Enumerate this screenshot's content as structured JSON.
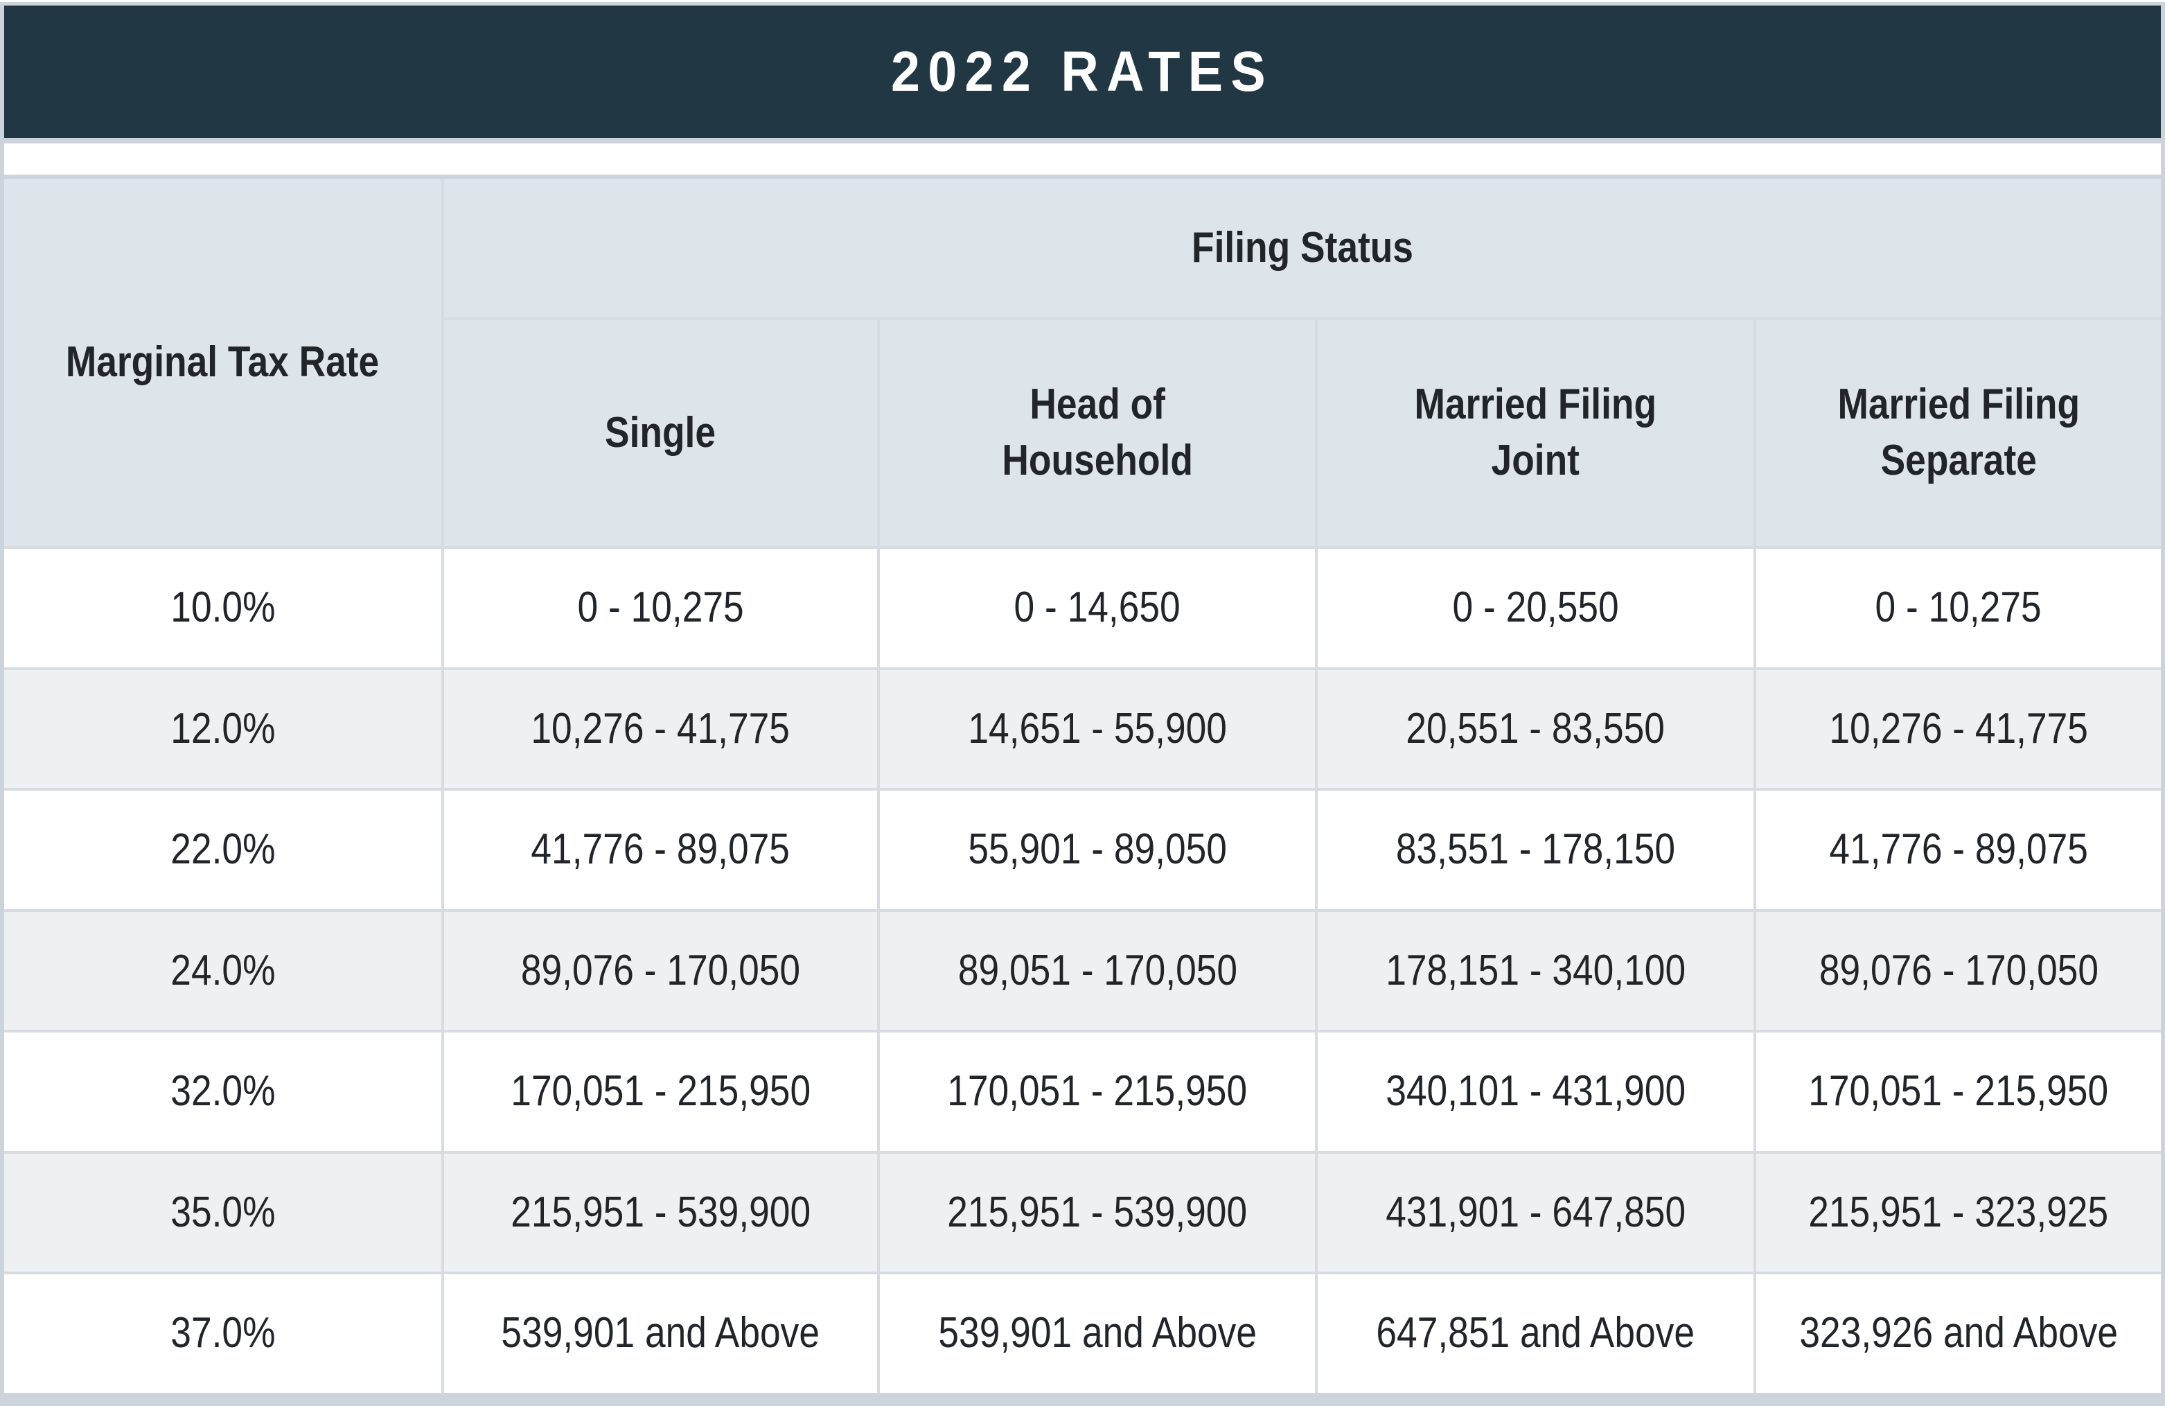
{
  "title": "2022 RATES",
  "table": {
    "corner_header": "Marginal Tax Rate",
    "group_header": "Filing Status",
    "column_headers": [
      "Single",
      "Head of\nHousehold",
      "Married Filing\nJoint",
      "Married Filing\nSeparate"
    ],
    "rows": [
      {
        "rate": "10.0%",
        "cells": [
          "0 - 10,275",
          "0 - 14,650",
          "0 - 20,550",
          "0 - 10,275"
        ]
      },
      {
        "rate": "12.0%",
        "cells": [
          "10,276 - 41,775",
          "14,651 - 55,900",
          "20,551 - 83,550",
          "10,276 - 41,775"
        ]
      },
      {
        "rate": "22.0%",
        "cells": [
          "41,776 - 89,075",
          "55,901 - 89,050",
          "83,551 - 178,150",
          "41,776 - 89,075"
        ]
      },
      {
        "rate": "24.0%",
        "cells": [
          "89,076 - 170,050",
          "89,051 - 170,050",
          "178,151 - 340,100",
          "89,076 - 170,050"
        ]
      },
      {
        "rate": "32.0%",
        "cells": [
          "170,051 - 215,950",
          "170,051 - 215,950",
          "340,101 - 431,900",
          "170,051 - 215,950"
        ]
      },
      {
        "rate": "35.0%",
        "cells": [
          "215,951 - 539,900",
          "215,951 - 539,900",
          "431,901 - 647,850",
          "215,951 - 323,925"
        ]
      },
      {
        "rate": "37.0%",
        "cells": [
          "539,901 and Above",
          "539,901 and Above",
          "647,851 and Above",
          "323,926 and Above"
        ]
      }
    ]
  },
  "colors": {
    "title_bar": "#213844",
    "title_text": "#ffffff",
    "header_bg": "#dee5ea",
    "row_bg": "#ffffff",
    "row_alt_bg": "#eef1f4",
    "grid_line": "#d6dce1",
    "frame": "#ccd3da",
    "text": "#212529"
  }
}
